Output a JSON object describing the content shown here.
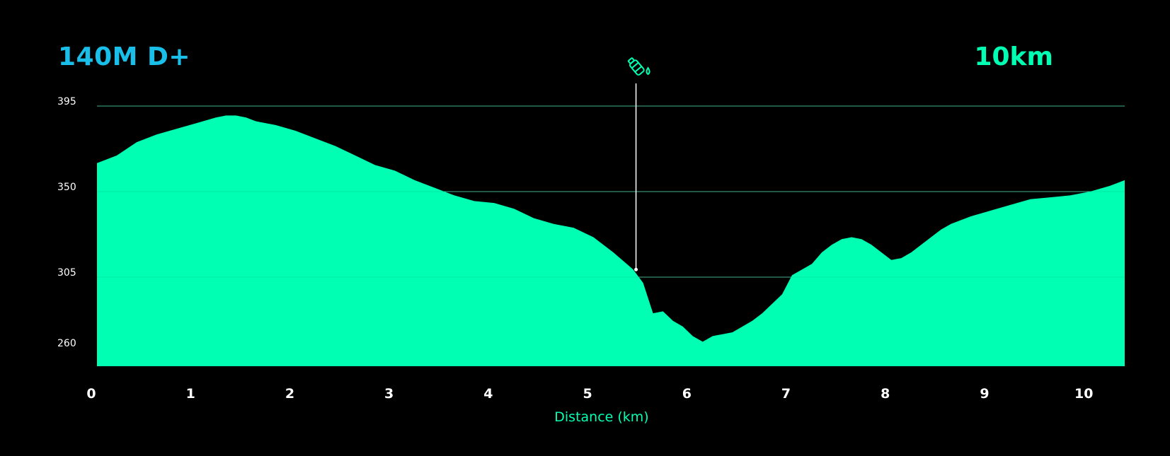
{
  "header": {
    "elevation_gain": "140M D+",
    "distance_total": "10km"
  },
  "chart_data": {
    "type": "area",
    "title": "",
    "xlabel": "Distance (km)",
    "ylabel": "",
    "xlim": [
      0,
      10.35
    ],
    "ylim": [
      260,
      395
    ],
    "x_ticks": [
      0,
      1,
      2,
      3,
      4,
      5,
      6,
      7,
      8,
      9,
      10
    ],
    "y_ticks": [
      260,
      305,
      350,
      395
    ],
    "grid": "horizontal",
    "colors": {
      "fill": "#00ffb3",
      "gridline": "#8a8a8a",
      "marker": "#ffffff",
      "xlabel": "#00ffb3",
      "tick_text": "#ffffff"
    },
    "series": [
      {
        "values_x": [
          0,
          0.2,
          0.4,
          0.6,
          0.8,
          1.0,
          1.2,
          1.3,
          1.4,
          1.5,
          1.6,
          1.8,
          2.0,
          2.2,
          2.4,
          2.6,
          2.8,
          3.0,
          3.2,
          3.4,
          3.6,
          3.8,
          4.0,
          4.2,
          4.4,
          4.6,
          4.8,
          5.0,
          5.2,
          5.4,
          5.5,
          5.6,
          5.7,
          5.8,
          5.9,
          6.0,
          6.1,
          6.2,
          6.3,
          6.4,
          6.5,
          6.6,
          6.7,
          6.8,
          6.9,
          7.0,
          7.1,
          7.2,
          7.3,
          7.4,
          7.5,
          7.6,
          7.7,
          7.8,
          8.0,
          8.1,
          8.2,
          8.3,
          8.4,
          8.5,
          8.6,
          8.8,
          9.0,
          9.2,
          9.4,
          9.6,
          9.8,
          10.0,
          10.2,
          10.35
        ],
        "values_y": [
          365,
          369,
          376,
          380,
          383,
          386,
          389,
          390,
          390,
          389,
          387,
          385,
          382,
          378,
          374,
          369,
          364,
          361,
          356,
          352,
          348,
          345,
          344,
          341,
          336,
          333,
          331,
          326,
          318,
          309,
          302,
          286,
          287,
          282,
          279,
          274,
          271,
          274,
          275,
          276,
          279,
          282,
          286,
          291,
          296,
          306,
          309,
          312,
          318,
          322,
          325,
          326,
          325,
          322,
          314,
          315,
          318,
          322,
          326,
          330,
          333,
          337,
          340,
          343,
          346,
          347,
          348,
          350,
          353,
          356
        ]
      }
    ],
    "annotations": [
      {
        "type": "water-station",
        "icon": "water-bottle-icon",
        "x": 5.4,
        "y": 309
      }
    ]
  }
}
